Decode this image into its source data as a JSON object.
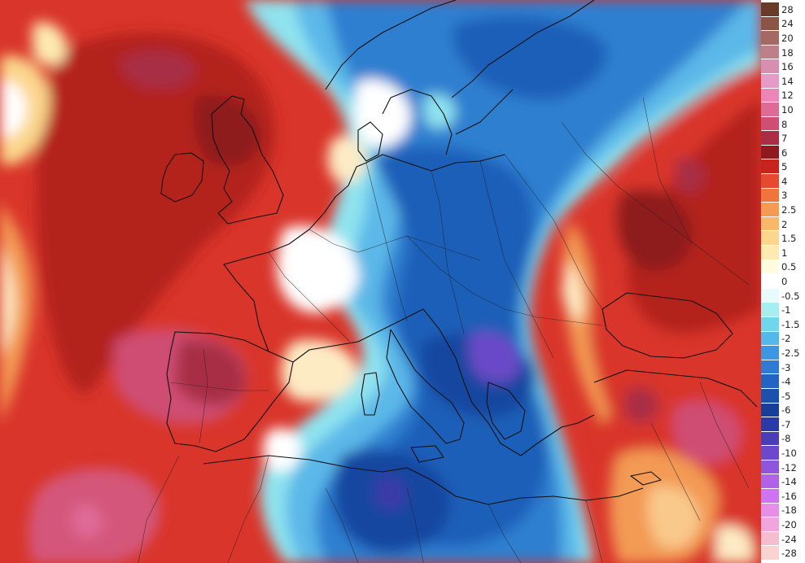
{
  "map": {
    "palette": {
      "deep_red": "#b4201c",
      "red": "#d9352a",
      "orange_red": "#e8603c",
      "orange": "#f39a55",
      "peach": "#f9c98c",
      "pale": "#fdebc4",
      "white": "#ffffff",
      "cyan": "#8fe3ef",
      "light_blue": "#5bb8e8",
      "blue": "#2f7fd0",
      "mid_blue": "#1f5fb8",
      "dark_blue": "#1846a0",
      "indigo": "#3a3aa8",
      "violet": "#6a4ac8",
      "pink": "#d4577a",
      "maroon": "#8e1f33",
      "border": "#111111"
    }
  },
  "legend": {
    "entries": [
      {
        "label": "28",
        "color": "#6b3b2a"
      },
      {
        "label": "24",
        "color": "#8a5447"
      },
      {
        "label": "20",
        "color": "#a46a62"
      },
      {
        "label": "18",
        "color": "#bd7f88"
      },
      {
        "label": "16",
        "color": "#d68fb0"
      },
      {
        "label": "14",
        "color": "#e69ac6"
      },
      {
        "label": "12",
        "color": "#ed86b8"
      },
      {
        "label": "10",
        "color": "#e06a97"
      },
      {
        "label": "8",
        "color": "#cf4e73"
      },
      {
        "label": "7",
        "color": "#a82e45"
      },
      {
        "label": "6",
        "color": "#8e1a1f"
      },
      {
        "label": "5",
        "color": "#c8241e"
      },
      {
        "label": "4",
        "color": "#e54a2e"
      },
      {
        "label": "3",
        "color": "#f0743c"
      },
      {
        "label": "2.5",
        "color": "#f59a52"
      },
      {
        "label": "2",
        "color": "#f8b86a"
      },
      {
        "label": "1.5",
        "color": "#fbd68c"
      },
      {
        "label": "1",
        "color": "#fdeab0"
      },
      {
        "label": "0.5",
        "color": "#fffbe0"
      },
      {
        "label": "0",
        "color": "#ffffff"
      },
      {
        "label": "-0.5",
        "color": "#e8fbfc"
      },
      {
        "label": "-1",
        "color": "#a6eef2"
      },
      {
        "label": "-1.5",
        "color": "#6fd7ec"
      },
      {
        "label": "-2",
        "color": "#52b9ea"
      },
      {
        "label": "-2.5",
        "color": "#3d97e0"
      },
      {
        "label": "-3",
        "color": "#2f7ad4"
      },
      {
        "label": "-4",
        "color": "#2364c2"
      },
      {
        "label": "-5",
        "color": "#1b50ad"
      },
      {
        "label": "-6",
        "color": "#173f99"
      },
      {
        "label": "-7",
        "color": "#2a3aa6"
      },
      {
        "label": "-8",
        "color": "#4a3eb8"
      },
      {
        "label": "-10",
        "color": "#6c48cc"
      },
      {
        "label": "-12",
        "color": "#8e56dc"
      },
      {
        "label": "-14",
        "color": "#b062e8"
      },
      {
        "label": "-16",
        "color": "#cf74f0"
      },
      {
        "label": "-18",
        "color": "#e68ee8"
      },
      {
        "label": "-20",
        "color": "#f0a6dc"
      },
      {
        "label": "-24",
        "color": "#f6bccf"
      },
      {
        "label": "-28",
        "color": "#f9d2d2"
      }
    ]
  }
}
